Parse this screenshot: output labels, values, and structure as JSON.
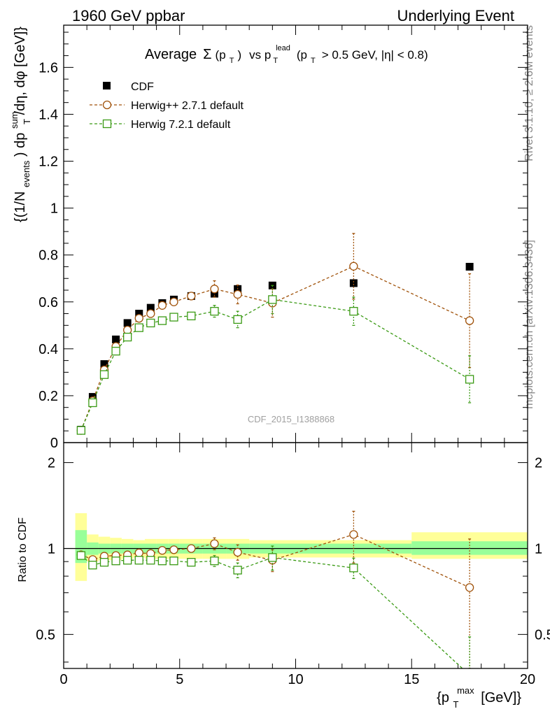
{
  "header": {
    "left": "1960 GeV ppbar",
    "right": "Underlying Event"
  },
  "side_text": {
    "rivet": "Rivet 3.1.10, ≥ 2.6M events",
    "mcplots": "mcplots.cern.ch [arXiv:1306.3436]"
  },
  "title_parts": {
    "lead": "Average",
    "sigma": "Σ",
    "pt_open": "(p",
    "t_sub": "T",
    "pt_close": ")",
    "vs": "vs p",
    "lead_sup": "lead",
    "tail": "(p",
    "tail_sub": "T",
    "tail_rest": "> 0.5 GeV, |η| < 0.8)"
  },
  "watermark": "CDF_2015_I1388868",
  "ylabel_main_parts": {
    "a": "{(1/N",
    "events_sub": "events",
    "b": ") dp",
    "sum_sup": "sum",
    "t_sub": "T",
    "c": "/dη, dφ [GeV]}"
  },
  "ylabel_ratio": "Ratio to CDF",
  "xlabel_parts": {
    "a": "{p",
    "max_sup": "max",
    "t_sub": "T",
    "b": "[GeV]}"
  },
  "colors": {
    "cdf": "#000000",
    "herwigpp": "#a0520a",
    "herwig7": "#3a9a14",
    "band_yellow": "#ffff99",
    "band_green": "#99ff99"
  },
  "chart_data": {
    "type": "scatter",
    "xlim": [
      0,
      20
    ],
    "ylim": [
      0,
      1.78
    ],
    "ratio_ylim": [
      0.38,
      2.35
    ],
    "ratio_log_scale": true,
    "x_ticks": [
      "0",
      "5",
      "10",
      "15",
      "20"
    ],
    "y_ticks": [
      "0",
      "0.2",
      "0.4",
      "0.6",
      "0.8",
      "1",
      "1.2",
      "1.4",
      "1.6"
    ],
    "ratio_ticks": [
      "0.5",
      "1",
      "2"
    ],
    "legend_position": "top-left",
    "series": [
      {
        "name": "CDF",
        "marker": "square-filled",
        "x": [
          0.75,
          1.25,
          1.75,
          2.25,
          2.75,
          3.25,
          3.75,
          4.25,
          4.75,
          5.5,
          6.5,
          7.5,
          9.0,
          12.5,
          17.5
        ],
        "y": [
          0.055,
          0.195,
          0.335,
          0.44,
          0.51,
          0.55,
          0.575,
          0.595,
          0.61,
          0.625,
          0.635,
          0.655,
          0.67,
          0.68,
          0.75
        ]
      },
      {
        "name": "Herwig++ 2.7.1 default",
        "marker": "circle-open",
        "x": [
          0.75,
          1.25,
          1.75,
          2.25,
          2.75,
          3.25,
          3.75,
          4.25,
          4.75,
          5.5,
          6.5,
          7.5,
          9.0,
          12.5,
          17.5
        ],
        "y": [
          0.052,
          0.178,
          0.31,
          0.41,
          0.48,
          0.53,
          0.55,
          0.585,
          0.6,
          0.625,
          0.655,
          0.632,
          0.595,
          0.752,
          0.52
        ],
        "yerr": [
          0.005,
          0.006,
          0.007,
          0.008,
          0.009,
          0.01,
          0.01,
          0.012,
          0.012,
          0.015,
          0.035,
          0.04,
          0.06,
          0.14,
          0.2
        ]
      },
      {
        "name": "Herwig 7.2.1 default",
        "marker": "square-open",
        "x": [
          0.75,
          1.25,
          1.75,
          2.25,
          2.75,
          3.25,
          3.75,
          4.25,
          4.75,
          5.5,
          6.5,
          7.5,
          9.0,
          12.5,
          17.5
        ],
        "y": [
          0.052,
          0.17,
          0.29,
          0.39,
          0.45,
          0.49,
          0.51,
          0.52,
          0.535,
          0.54,
          0.56,
          0.525,
          0.61,
          0.56,
          0.27
        ],
        "yerr": [
          0.005,
          0.006,
          0.007,
          0.008,
          0.009,
          0.01,
          0.01,
          0.011,
          0.011,
          0.012,
          0.025,
          0.035,
          0.06,
          0.06,
          0.1
        ]
      }
    ],
    "ratio_band": {
      "edges": [
        0.5,
        1.0,
        1.5,
        2.0,
        2.5,
        3.0,
        3.5,
        4.0,
        4.5,
        5.0,
        6.0,
        7.0,
        8.0,
        10.0,
        15.0,
        20.0
      ],
      "yellow_lo": [
        0.77,
        0.9,
        0.91,
        0.91,
        0.92,
        0.93,
        0.92,
        0.92,
        0.92,
        0.92,
        0.92,
        0.92,
        0.93,
        0.93,
        0.92
      ],
      "yellow_hi": [
        1.33,
        1.12,
        1.1,
        1.09,
        1.08,
        1.07,
        1.08,
        1.08,
        1.08,
        1.08,
        1.08,
        1.08,
        1.07,
        1.07,
        1.14
      ],
      "green_lo": [
        0.89,
        0.95,
        0.96,
        0.96,
        0.96,
        0.96,
        0.96,
        0.96,
        0.96,
        0.96,
        0.96,
        0.96,
        0.96,
        0.96,
        0.95
      ],
      "green_hi": [
        1.16,
        1.05,
        1.04,
        1.04,
        1.04,
        1.04,
        1.04,
        1.04,
        1.04,
        1.04,
        1.04,
        1.04,
        1.04,
        1.04,
        1.06
      ]
    },
    "ratio_series": [
      {
        "name": "Herwig++ 2.7.1 default",
        "x": [
          0.75,
          1.25,
          1.75,
          2.25,
          2.75,
          3.25,
          3.75,
          4.25,
          4.75,
          5.5,
          6.5,
          7.5,
          9.0,
          12.5,
          17.5
        ],
        "y": [
          0.95,
          0.915,
          0.94,
          0.945,
          0.95,
          0.965,
          0.96,
          0.985,
          0.99,
          1.0,
          1.04,
          0.97,
          0.91,
          1.12,
          0.73
        ],
        "yerr": [
          0.01,
          0.01,
          0.01,
          0.01,
          0.01,
          0.01,
          0.01,
          0.01,
          0.01,
          0.015,
          0.05,
          0.06,
          0.08,
          0.23,
          0.35
        ]
      },
      {
        "name": "Herwig 7.2.1 default",
        "x": [
          0.75,
          1.25,
          1.75,
          2.25,
          2.75,
          3.25,
          3.75,
          4.25,
          4.75,
          5.5,
          6.5,
          7.5,
          9.0,
          12.5,
          17.5
        ],
        "y": [
          0.945,
          0.875,
          0.895,
          0.905,
          0.91,
          0.91,
          0.91,
          0.905,
          0.905,
          0.895,
          0.905,
          0.84,
          0.93,
          0.855,
          0.36
        ],
        "yerr": [
          0.01,
          0.01,
          0.01,
          0.01,
          0.01,
          0.01,
          0.01,
          0.01,
          0.01,
          0.012,
          0.04,
          0.05,
          0.09,
          0.07,
          0.13
        ]
      }
    ]
  }
}
